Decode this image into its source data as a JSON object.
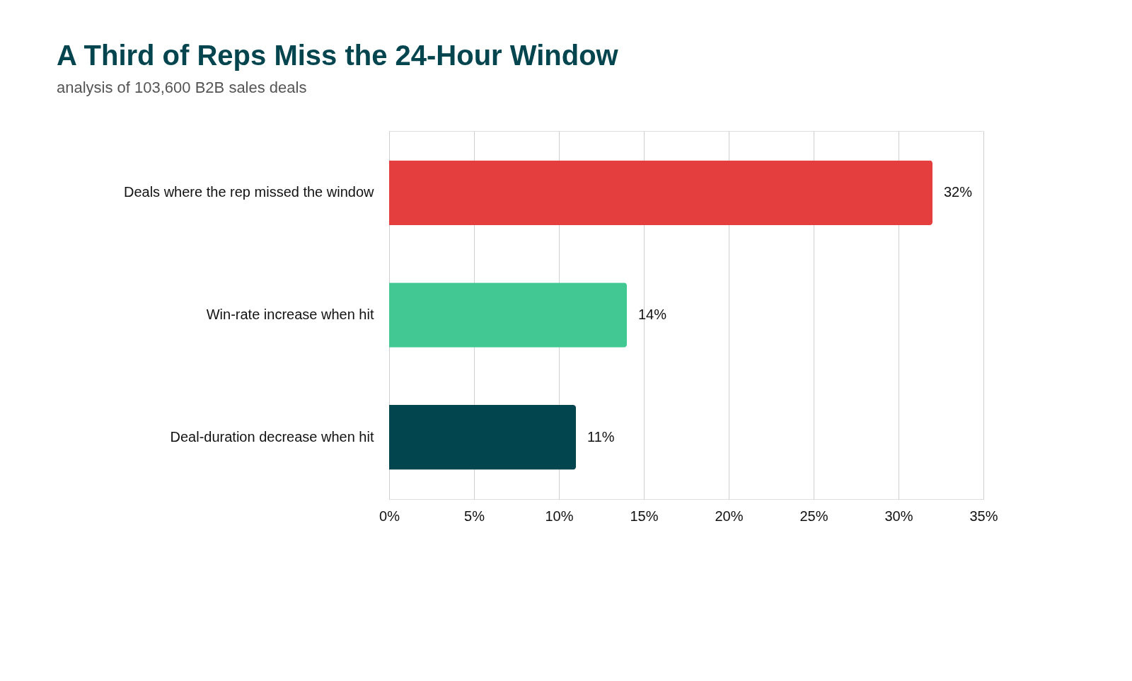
{
  "chart_data": {
    "type": "bar",
    "orientation": "horizontal",
    "title": "A Third of Reps Miss the 24-Hour Window",
    "subtitle": "analysis of 103,600 B2B sales deals",
    "categories": [
      "Deals where the rep missed the window",
      "Win-rate increase when hit",
      "Deal-duration decrease when hit"
    ],
    "values": [
      32,
      14,
      11
    ],
    "colors": [
      "#e53e3e",
      "#41c893",
      "#03454f"
    ],
    "value_labels": [
      "32%",
      "14%",
      "11%"
    ],
    "xlim": [
      0,
      35
    ],
    "xticks": [
      {
        "value": 0,
        "label": "0%"
      },
      {
        "value": 5,
        "label": "5%"
      },
      {
        "value": 10,
        "label": "10%"
      },
      {
        "value": 15,
        "label": "15%"
      },
      {
        "value": 20,
        "label": "20%"
      },
      {
        "value": 25,
        "label": "25%"
      },
      {
        "value": 30,
        "label": "30%"
      },
      {
        "value": 35,
        "label": "35%"
      }
    ],
    "grid": "x"
  }
}
